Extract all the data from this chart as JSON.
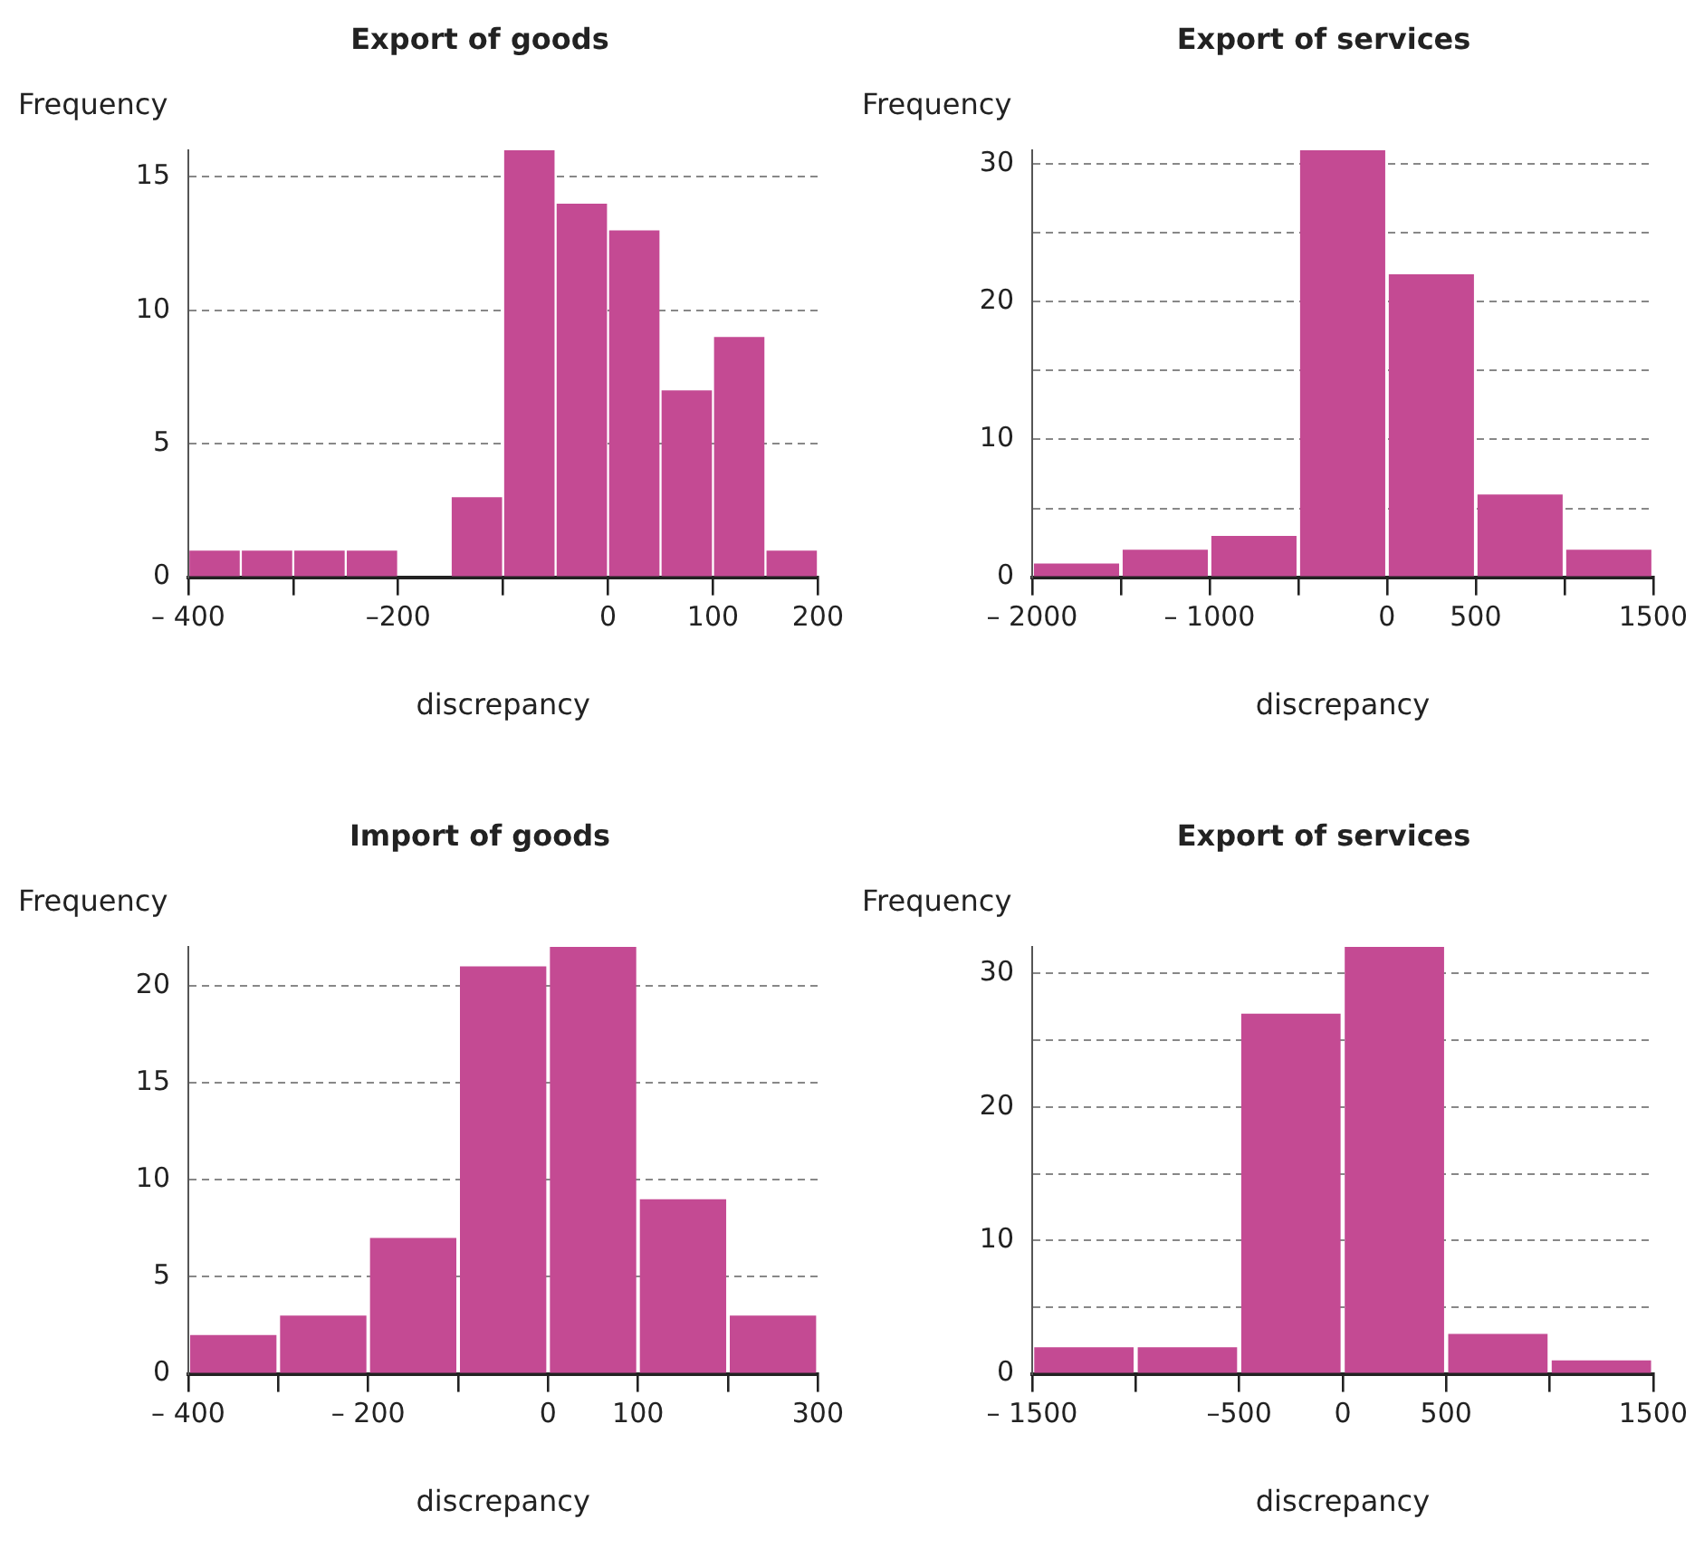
{
  "chart_data": [
    {
      "type": "histogram",
      "title": "Export of goods",
      "xlabel": "discrepancy",
      "ylabel": "Frequency",
      "color": "#c44a93",
      "bins": [
        -400,
        -350,
        -300,
        -250,
        -200,
        -150,
        -100,
        -50,
        0,
        50,
        100,
        150,
        200
      ],
      "values": [
        1,
        1,
        1,
        1,
        0,
        3,
        16,
        14,
        13,
        7,
        9,
        1
      ],
      "xlim": [
        -400,
        200
      ],
      "xticks": [
        {
          "value": -400,
          "label": "– 400"
        },
        {
          "value": -300,
          "label": null
        },
        {
          "value": -200,
          "label": "–200"
        },
        {
          "value": -100,
          "label": null
        },
        0,
        100,
        200
      ],
      "ylim": [
        0,
        16
      ],
      "yticks": [
        0,
        5,
        10,
        15
      ],
      "grid": "y"
    },
    {
      "type": "histogram",
      "title": "Export of services",
      "xlabel": "discrepancy",
      "ylabel": "Frequency",
      "color": "#c44a93",
      "bins": [
        -2000,
        -1500,
        -1000,
        -500,
        0,
        500,
        1000,
        1500
      ],
      "values": [
        1,
        2,
        3,
        31,
        22,
        6,
        2
      ],
      "xlim": [
        -2000,
        1500
      ],
      "xticks": [
        {
          "value": -2000,
          "label": "– 2000"
        },
        {
          "value": -1500,
          "label": null
        },
        {
          "value": -1000,
          "label": "– 1000"
        },
        {
          "value": -500,
          "label": null
        },
        0,
        500,
        {
          "value": 1000,
          "label": null
        },
        1500
      ],
      "ylim": [
        0,
        31
      ],
      "yticks": [
        0,
        {
          "value": 5,
          "label": null
        },
        10,
        {
          "value": 15,
          "label": null
        },
        20,
        {
          "value": 25,
          "label": null
        },
        30
      ],
      "grid": "y"
    },
    {
      "type": "histogram",
      "title": "Import of goods",
      "xlabel": "discrepancy",
      "ylabel": "Frequency",
      "color": "#c44a93",
      "bins": [
        -400,
        -300,
        -200,
        -100,
        0,
        100,
        200,
        300
      ],
      "values": [
        2,
        3,
        7,
        21,
        22,
        9,
        3
      ],
      "xlim": [
        -400,
        300
      ],
      "xticks": [
        {
          "value": -400,
          "label": "– 400"
        },
        {
          "value": -300,
          "label": null
        },
        {
          "value": -200,
          "label": "– 200"
        },
        {
          "value": -100,
          "label": null
        },
        0,
        100,
        {
          "value": 200,
          "label": null
        },
        300
      ],
      "ylim": [
        0,
        22
      ],
      "yticks": [
        0,
        5,
        10,
        15,
        20
      ],
      "grid": "y"
    },
    {
      "type": "histogram",
      "title": "Export of services",
      "xlabel": "discrepancy",
      "ylabel": "Frequency",
      "color": "#c44a93",
      "bins": [
        -1500,
        -1000,
        -500,
        0,
        500,
        1000,
        1500
      ],
      "values": [
        2,
        2,
        27,
        32,
        3,
        1
      ],
      "xlim": [
        -1500,
        1500
      ],
      "xticks": [
        {
          "value": -1500,
          "label": "– 1500"
        },
        {
          "value": -1000,
          "label": null
        },
        {
          "value": -500,
          "label": "–500"
        },
        0,
        500,
        {
          "value": 1000,
          "label": null
        },
        1500
      ],
      "ylim": [
        0,
        32
      ],
      "yticks": [
        0,
        {
          "value": 5,
          "label": null
        },
        10,
        {
          "value": 15,
          "label": null
        },
        20,
        {
          "value": 25,
          "label": null
        },
        30
      ],
      "grid": "y"
    }
  ]
}
